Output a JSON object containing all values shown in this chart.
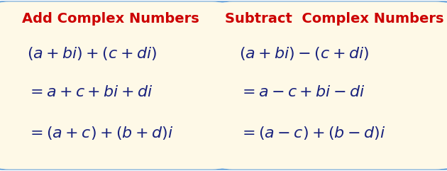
{
  "bg_color": "#ffffff",
  "box_fill": "#fef9e7",
  "box_edge": "#5b9bd5",
  "outer_border": "#5b9bd5",
  "title_color": "#cc0000",
  "math_color": "#1a237e",
  "left_title": "Add Complex Numbers",
  "right_title": "Subtract  Complex Numbers",
  "figsize": [
    6.3,
    2.41
  ],
  "dpi": 100,
  "title_fs": 14,
  "math_fs": 16
}
